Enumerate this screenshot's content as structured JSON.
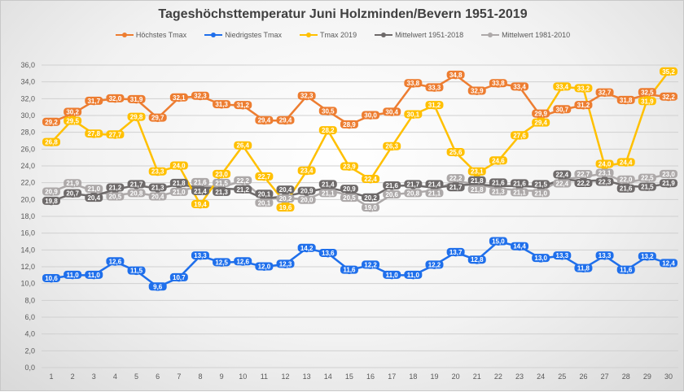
{
  "chart_data": {
    "type": "line",
    "title": "Tageshöchsttemperatur Juni Holzminden/Bevern 1951-2019",
    "xlabel": "",
    "ylabel": "",
    "categories": [
      "1",
      "2",
      "3",
      "4",
      "5",
      "6",
      "7",
      "8",
      "9",
      "10",
      "11",
      "12",
      "13",
      "14",
      "15",
      "16",
      "17",
      "18",
      "19",
      "20",
      "21",
      "22",
      "23",
      "24",
      "25",
      "26",
      "27",
      "28",
      "29",
      "30"
    ],
    "ylim": [
      0,
      36
    ],
    "yticks": [
      "0,0",
      "2,0",
      "4,0",
      "6,0",
      "8,0",
      "10,0",
      "12,0",
      "14,0",
      "16,0",
      "18,0",
      "20,0",
      "22,0",
      "24,0",
      "26,0",
      "28,0",
      "30,0",
      "32,0",
      "34,0",
      "36,0"
    ],
    "grid": true,
    "legend": "top",
    "data_labels": true,
    "series": [
      {
        "name": "Höchstes Tmax",
        "color": "#ED7D31",
        "values": [
          29.2,
          30.2,
          31.7,
          32.0,
          31.9,
          29.7,
          32.1,
          32.3,
          31.3,
          31.2,
          29.4,
          29.4,
          32.3,
          30.5,
          28.9,
          30.0,
          30.4,
          33.8,
          33.3,
          34.8,
          32.9,
          33.8,
          33.4,
          29.9,
          30.7,
          31.2,
          32.7,
          31.8,
          32.5,
          32.2
        ]
      },
      {
        "name": "Niedrigstes Tmax",
        "color": "#1F6FEB",
        "values": [
          10.6,
          11.0,
          11.0,
          12.6,
          11.5,
          9.6,
          10.7,
          13.3,
          12.5,
          12.6,
          12.0,
          12.3,
          14.2,
          13.6,
          11.6,
          12.2,
          11.0,
          11.0,
          12.2,
          13.7,
          12.8,
          15.0,
          14.4,
          13.0,
          13.3,
          11.8,
          13.3,
          11.6,
          13.2,
          12.4
        ]
      },
      {
        "name": "Tmax 2019",
        "color": "#FFC000",
        "values": [
          26.8,
          29.5,
          27.8,
          27.7,
          29.8,
          23.3,
          24.0,
          19.4,
          23.0,
          26.4,
          22.7,
          19.6,
          23.4,
          28.2,
          23.9,
          22.4,
          26.3,
          30.1,
          31.2,
          25.6,
          23.1,
          24.6,
          27.6,
          29.4,
          33.4,
          33.2,
          24.0,
          24.4,
          31.9,
          35.2
        ]
      },
      {
        "name": "Mittelwert 1951-2018",
        "color": "#6E6A6A",
        "values": [
          19.8,
          20.7,
          20.4,
          21.2,
          21.7,
          21.3,
          21.8,
          21.4,
          21.3,
          21.2,
          20.1,
          20.4,
          20.9,
          21.4,
          20.9,
          20.2,
          21.6,
          21.7,
          21.4,
          21.7,
          21.8,
          21.6,
          21.6,
          21.5,
          22.4,
          22.2,
          22.3,
          21.6,
          21.5,
          21.9
        ]
      },
      {
        "name": "Mittelwert 1981-2010",
        "color": "#ADA9A9",
        "values": [
          20.9,
          21.9,
          21.0,
          20.5,
          20.8,
          20.4,
          21.0,
          21.6,
          21.5,
          22.2,
          20.1,
          20.2,
          20.0,
          21.1,
          20.5,
          19.0,
          20.6,
          20.8,
          21.1,
          22.2,
          21.8,
          21.3,
          21.1,
          21.0,
          22.4,
          22.7,
          23.1,
          22.0,
          22.5,
          23.0
        ]
      }
    ]
  }
}
